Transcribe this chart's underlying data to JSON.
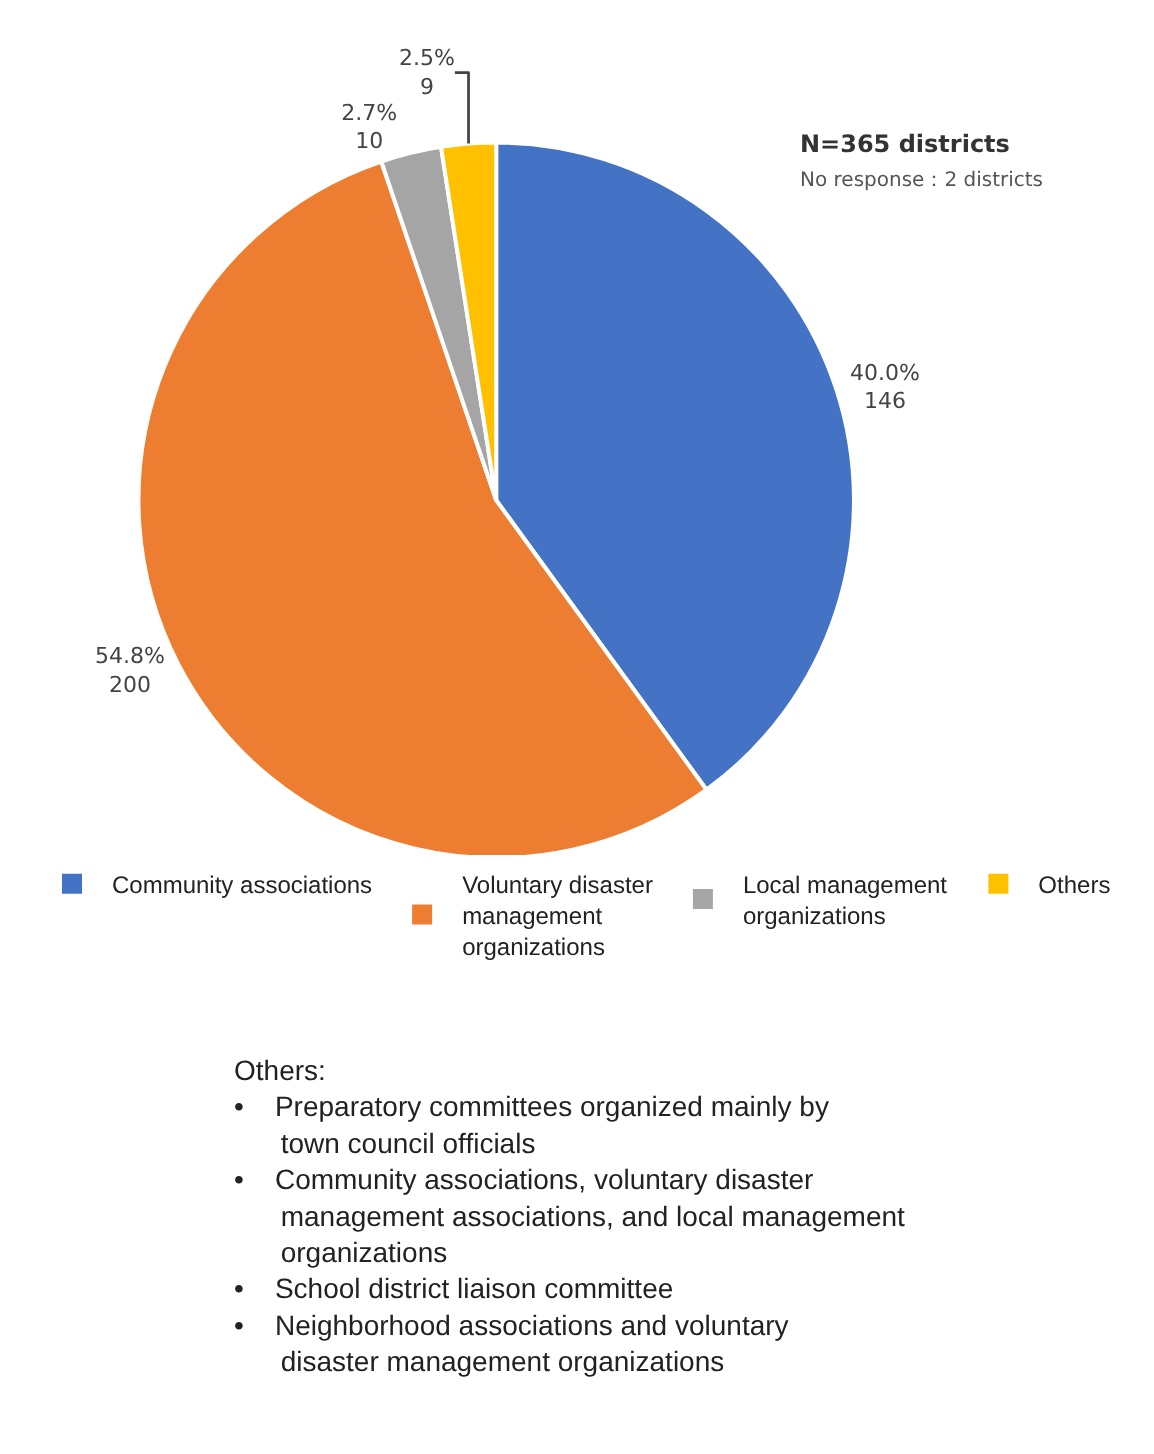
{
  "chart_data": {
    "type": "pie",
    "categories": [
      "Community associations",
      "Voluntary disaster management organizations",
      "Local management organizations",
      "Others"
    ],
    "values": [
      146,
      200,
      10,
      9
    ],
    "colors": [
      "#4472c4",
      "#ed7d31",
      "#a5a5a5",
      "#ffc000"
    ],
    "value_labels": [
      "40.0%\n146",
      "54.8%\n200",
      "2.7%\n10",
      "2.5%\n9"
    ],
    "legend": "bottom",
    "annotations": [
      "N=365 districts",
      "No response：2 districts",
      "Others:\n• Preparatory committees organized mainly by town council officials\n• Community associations, voluntary disaster management associations, and local management organizations\n• School district liaison committee\n• Neighborhood associations and voluntary disaster management organizations"
    ]
  }
}
